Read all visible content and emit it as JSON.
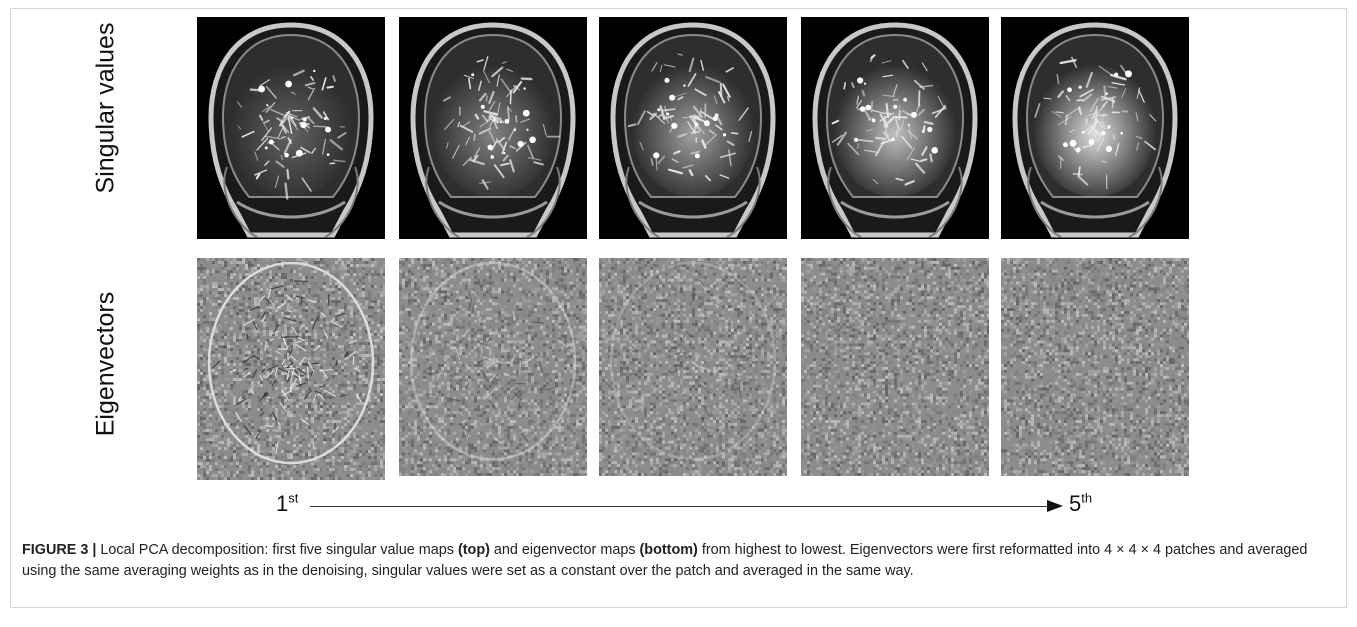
{
  "figure": {
    "row_labels": {
      "top": "Singular values",
      "bottom": "Eigenvectors"
    },
    "order": {
      "start_num": "1",
      "start_sup": "st",
      "end_num": "5",
      "end_sup": "th"
    },
    "panels_count": 5
  },
  "caption": {
    "label": "FIGURE 3 |",
    "t1": " Local PCA decomposition: first five singular value maps ",
    "b1": "(top)",
    "t2": " and eigenvector maps ",
    "b2": "(bottom)",
    "t3": " from highest to lowest. Eigenvectors were first reformatted into 4 × 4 × 4 patches and averaged using the same averaging weights as in the denoising, singular values were set as a constant over the patch and averaged in the same way."
  }
}
